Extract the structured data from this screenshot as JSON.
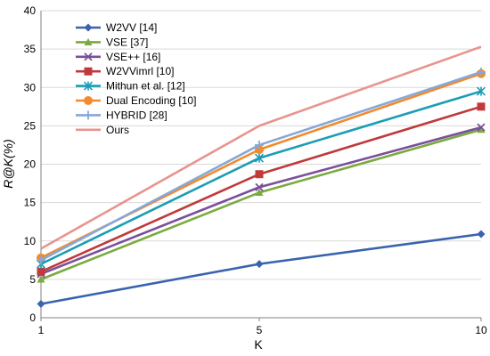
{
  "chart_data": {
    "type": "line",
    "title": "",
    "xlabel": "K",
    "ylabel": "R@K(%)",
    "x": [
      1,
      5,
      10
    ],
    "xticks": [
      "1",
      "5",
      "10"
    ],
    "ylim": [
      0,
      40
    ],
    "yticks": [
      "0",
      "5",
      "10",
      "15",
      "20",
      "25",
      "30",
      "35",
      "40"
    ],
    "grid": true,
    "legend_position": "top-left",
    "series": [
      {
        "name": "W2VV [14]",
        "values": [
          1.8,
          7.0,
          10.9
        ],
        "color": "#3a63ad",
        "marker": "diamond"
      },
      {
        "name": "VSE [37]",
        "values": [
          5.0,
          16.3,
          24.5
        ],
        "color": "#7aab3e",
        "marker": "triangle"
      },
      {
        "name": "VSE++ [16]",
        "values": [
          5.7,
          17.0,
          24.8
        ],
        "color": "#7a4f9b",
        "marker": "x"
      },
      {
        "name": "W2VVimrl [10]",
        "values": [
          6.0,
          18.7,
          27.5
        ],
        "color": "#c0393b",
        "marker": "square"
      },
      {
        "name": "Mithun et al. [12]",
        "values": [
          7.0,
          20.8,
          29.5
        ],
        "color": "#1a9db5",
        "marker": "star"
      },
      {
        "name": "Dual Encoding [10]",
        "values": [
          7.8,
          21.9,
          31.8
        ],
        "color": "#f28a2e",
        "marker": "circle"
      },
      {
        "name": "HYBRID [28]",
        "values": [
          7.5,
          22.5,
          32.0
        ],
        "color": "#86a8d6",
        "marker": "plus"
      },
      {
        "name": "Ours",
        "values": [
          9.0,
          25.0,
          35.3
        ],
        "color": "#e8948f",
        "marker": "none"
      }
    ]
  }
}
